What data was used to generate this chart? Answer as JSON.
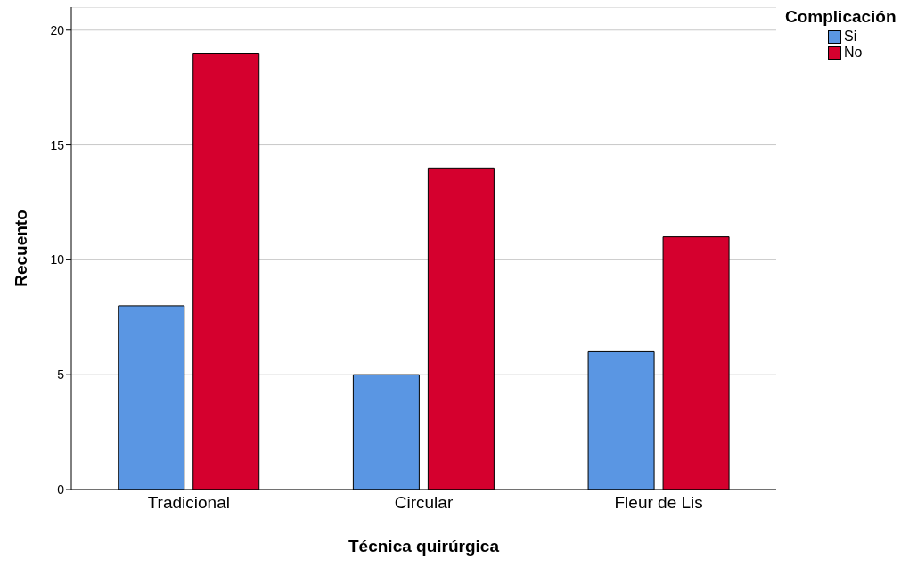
{
  "chart_data": {
    "type": "bar",
    "xlabel": "Técnica quirúrgica",
    "ylabel": "Recuento",
    "legend_title": "Complicación",
    "categories": [
      "Tradicional",
      "Circular",
      "Fleur de Lis"
    ],
    "series": [
      {
        "name": "Si",
        "color": "#5a96e3",
        "values": [
          8,
          5,
          6
        ]
      },
      {
        "name": "No",
        "color": "#d5002e",
        "values": [
          19,
          14,
          11
        ]
      }
    ],
    "ylim": [
      0,
      21
    ],
    "yticks": [
      0,
      5,
      10,
      15,
      20
    ],
    "grid": "y",
    "legend": "top right"
  }
}
